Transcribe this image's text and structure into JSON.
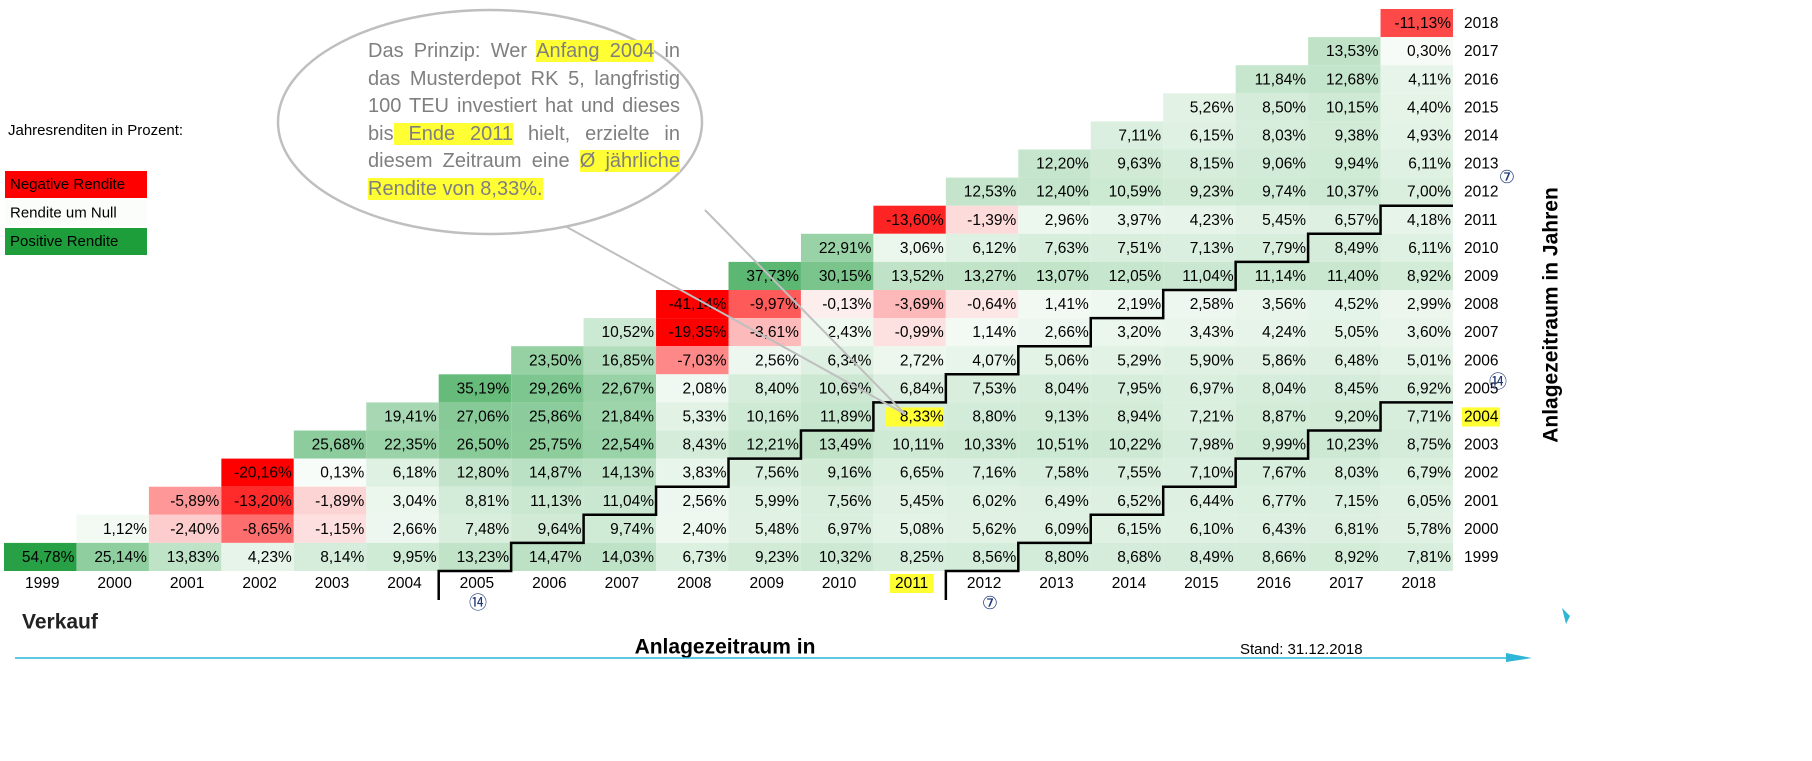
{
  "legend": {
    "caption": "Jahresrenditen in Prozent:",
    "items": [
      "Negative Rendite",
      "Rendite um Null",
      "Positive Rendite"
    ]
  },
  "callout": [
    {
      "text": "Das Prinzip: Wer "
    },
    {
      "text": "Anfang 2004",
      "highlight": true
    },
    {
      "text": " in das Musterdepot RK 5, langfristig 100 TEU investiert hat und dieses bis"
    },
    {
      "text": " Ende 2011",
      "highlight": true
    },
    {
      "text": " hielt, erzielte in diesem Zeitraum eine "
    },
    {
      "text": "Ø jährliche Rendite von 8,33%.",
      "highlight": true
    }
  ],
  "table": {
    "column_header": "Verkauf",
    "columns": [
      "1999",
      "2000",
      "2001",
      "2002",
      "2003",
      "2004",
      "2005",
      "2006",
      "2007",
      "2008",
      "2009",
      "2010",
      "2011",
      "2012",
      "2013",
      "2014",
      "2015",
      "2016",
      "2017",
      "2018"
    ],
    "rows": [
      {
        "label": "2018",
        "cells": [
          "-11,13%"
        ]
      },
      {
        "label": "2017",
        "cells": [
          "13,53%",
          "0,30%"
        ]
      },
      {
        "label": "2016",
        "cells": [
          "11,84%",
          "12,68%",
          "4,11%"
        ]
      },
      {
        "label": "2015",
        "cells": [
          "5,26%",
          "8,50%",
          "10,15%",
          "4,40%"
        ]
      },
      {
        "label": "2014",
        "cells": [
          "7,11%",
          "6,15%",
          "8,03%",
          "9,38%",
          "4,93%"
        ]
      },
      {
        "label": "2013",
        "cells": [
          "12,20%",
          "9,63%",
          "8,15%",
          "9,06%",
          "9,94%",
          "6,11%"
        ]
      },
      {
        "label": "2012",
        "cells": [
          "12,53%",
          "12,40%",
          "10,59%",
          "9,23%",
          "9,74%",
          "10,37%",
          "7,00%"
        ]
      },
      {
        "label": "2011",
        "cells": [
          "-13,60%",
          "-1,39%",
          "2,96%",
          "3,97%",
          "4,23%",
          "5,45%",
          "6,57%",
          "4,18%"
        ]
      },
      {
        "label": "2010",
        "cells": [
          "22,91%",
          "3,06%",
          "6,12%",
          "7,63%",
          "7,51%",
          "7,13%",
          "7,79%",
          "8,49%",
          "6,11%"
        ]
      },
      {
        "label": "2009",
        "cells": [
          "37,73%",
          "30,15%",
          "13,52%",
          "13,27%",
          "13,07%",
          "12,05%",
          "11,04%",
          "11,14%",
          "11,40%",
          "8,92%"
        ]
      },
      {
        "label": "2008",
        "cells": [
          "-41,14%",
          "-9,97%",
          "-0,13%",
          "-3,69%",
          "-0,64%",
          "1,41%",
          "2,19%",
          "2,58%",
          "3,56%",
          "4,52%",
          "2,99%"
        ]
      },
      {
        "label": "2007",
        "cells": [
          "10,52%",
          "-19,35%",
          "-3,61%",
          "2,43%",
          "-0,99%",
          "1,14%",
          "2,66%",
          "3,20%",
          "3,43%",
          "4,24%",
          "5,05%",
          "3,60%"
        ]
      },
      {
        "label": "2006",
        "cells": [
          "23,50%",
          "16,85%",
          "-7,03%",
          "2,56%",
          "6,34%",
          "2,72%",
          "4,07%",
          "5,06%",
          "5,29%",
          "5,90%",
          "5,86%",
          "6,48%",
          "5,01%"
        ]
      },
      {
        "label": "2005",
        "cells": [
          "35,19%",
          "29,26%",
          "22,67%",
          "2,08%",
          "8,40%",
          "10,69%",
          "6,84%",
          "7,53%",
          "8,04%",
          "7,95%",
          "6,97%",
          "8,04%",
          "8,45%",
          "6,92%"
        ]
      },
      {
        "label": "2004",
        "cells": [
          "19,41%",
          "27,06%",
          "25,86%",
          "21,84%",
          "5,33%",
          "10,16%",
          "11,89%",
          "8,33%",
          "8,80%",
          "9,13%",
          "8,94%",
          "7,21%",
          "8,87%",
          "9,20%",
          "7,71%"
        ]
      },
      {
        "label": "2003",
        "cells": [
          "25,68%",
          "22,35%",
          "26,50%",
          "25,75%",
          "22,54%",
          "8,43%",
          "12,21%",
          "13,49%",
          "10,11%",
          "10,33%",
          "10,51%",
          "10,22%",
          "7,98%",
          "9,99%",
          "10,23%",
          "8,75%"
        ]
      },
      {
        "label": "2002",
        "cells": [
          "-20,16%",
          "0,13%",
          "6,18%",
          "12,80%",
          "14,87%",
          "14,13%",
          "3,83%",
          "7,56%",
          "9,16%",
          "6,65%",
          "7,16%",
          "7,58%",
          "7,55%",
          "7,10%",
          "7,67%",
          "8,03%",
          "6,79%"
        ]
      },
      {
        "label": "2001",
        "cells": [
          "-5,89%",
          "-13,20%",
          "-1,89%",
          "3,04%",
          "8,81%",
          "11,13%",
          "11,04%",
          "2,56%",
          "5,99%",
          "7,56%",
          "5,45%",
          "6,02%",
          "6,49%",
          "6,52%",
          "6,44%",
          "6,77%",
          "7,15%",
          "6,05%"
        ]
      },
      {
        "label": "2000",
        "cells": [
          "1,12%",
          "-2,40%",
          "-8,65%",
          "-1,15%",
          "2,66%",
          "7,48%",
          "9,64%",
          "9,74%",
          "2,40%",
          "5,48%",
          "6,97%",
          "5,08%",
          "5,62%",
          "6,09%",
          "6,15%",
          "6,10%",
          "6,43%",
          "6,81%",
          "5,78%"
        ]
      },
      {
        "label": "1999",
        "cells": [
          "54,78%",
          "25,14%",
          "13,83%",
          "4,23%",
          "8,14%",
          "9,95%",
          "13,23%",
          "14,47%",
          "14,03%",
          "6,73%",
          "9,23%",
          "10,32%",
          "8,25%",
          "8,56%",
          "8,80%",
          "8,68%",
          "8,49%",
          "8,66%",
          "8,92%",
          "7,81%"
        ]
      }
    ]
  },
  "markers": {
    "seven": "⑦",
    "fourteen": "⑭"
  },
  "x_axis_label": "Anlagezeitraum in",
  "y_axis_label": "Anlagezeitraum in Jahren",
  "stand": "Stand: 31.12.2018"
}
